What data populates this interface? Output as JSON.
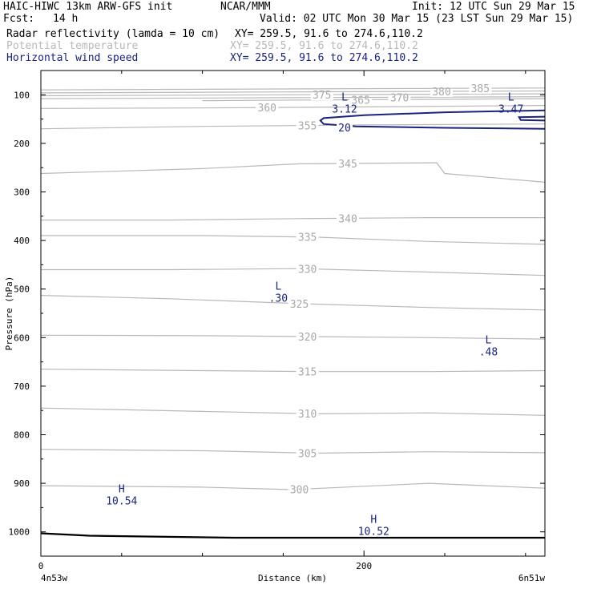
{
  "header": {
    "model": "HAIC-HIWC 13km ARW-GFS init",
    "org": "NCAR/MMM",
    "init": "Init: 12 UTC Sun 29 Mar 15",
    "fcst_label": "Fcst:",
    "fcst_value": "14 h",
    "valid": "Valid: 02 UTC Mon 30 Mar 15 (23 LST Sun 29 Mar 15)",
    "fields": [
      {
        "name": "Radar reflectivity (lamda = 10 cm)",
        "xy": "XY= 259.5, 91.6 to 274.6,110.2",
        "color": "#000000"
      },
      {
        "name": "Potential temperature",
        "xy": "XY= 259.5, 91.6 to 274.6,110.2",
        "color": "#b8b8b8"
      },
      {
        "name": "Horizontal wind speed",
        "xy": "XY= 259.5, 91.6 to 274.6,110.2",
        "color": "#1a237e"
      }
    ]
  },
  "chart_data": {
    "type": "line",
    "xlabel": "Distance (km)",
    "ylabel": "Pressure (hPa)",
    "xlim": [
      0,
      312
    ],
    "ylim": [
      1050,
      50
    ],
    "x_ticks": [
      "0",
      "200"
    ],
    "y_ticks": [
      "100",
      "200",
      "300",
      "400",
      "500",
      "600",
      "700",
      "800",
      "900",
      "1000"
    ],
    "x_endpoints": {
      "left": "4n53w",
      "right": "6n51w"
    },
    "grid": false,
    "series": [
      {
        "name": "Potential temperature",
        "color": "#b8b8b8",
        "isentropes": [
          {
            "label": "300",
            "x": [
              0,
              100,
              155,
              240,
              312
            ],
            "p": [
              905,
              908,
              913,
              900,
              910
            ]
          },
          {
            "label": "305",
            "x": [
              0,
              100,
              170,
              240,
              312
            ],
            "p": [
              830,
              833,
              838,
              835,
              837
            ]
          },
          {
            "label": "310",
            "x": [
              0,
              100,
              170,
              240,
              312
            ],
            "p": [
              745,
              752,
              757,
              755,
              760
            ]
          },
          {
            "label": "315",
            "x": [
              0,
              100,
              170,
              240,
              312
            ],
            "p": [
              665,
              668,
              670,
              670,
              668
            ]
          },
          {
            "label": "320",
            "x": [
              0,
              100,
              170,
              240,
              312
            ],
            "p": [
              595,
              596,
              598,
              600,
              603
            ]
          },
          {
            "label": "325",
            "x": [
              0,
              80,
              160,
              240,
              312
            ],
            "p": [
              513,
              520,
              530,
              538,
              543
            ]
          },
          {
            "label": "330",
            "x": [
              0,
              80,
              160,
              240,
              312
            ],
            "p": [
              460,
              460,
              458,
              465,
              472
            ]
          },
          {
            "label": "335",
            "x": [
              0,
              100,
              170,
              240,
              312
            ],
            "p": [
              390,
              390,
              393,
              402,
              408
            ]
          },
          {
            "label": "340",
            "x": [
              0,
              80,
              160,
              240,
              312
            ],
            "p": [
              358,
              358,
              355,
              353,
              353
            ]
          },
          {
            "label": "345",
            "x": [
              0,
              100,
              160,
              245,
              250,
              312
            ],
            "p": [
              262,
              252,
              242,
              240,
              262,
              280
            ]
          },
          {
            "label": "355",
            "x": [
              0,
              100,
              200,
              312
            ],
            "p": [
              170,
              165,
              162,
              160
            ]
          },
          {
            "label": "360",
            "x": [
              0,
              100,
              200,
              312
            ],
            "p": [
              128,
              127,
              125,
              122
            ]
          },
          {
            "label": "365",
            "x": [
              100,
              200,
              312
            ],
            "p": [
              112,
              110,
              108
            ]
          },
          {
            "label": "370",
            "x": [
              0,
              150,
              312
            ],
            "p": [
              108,
              106,
              104
            ]
          },
          {
            "label": "375",
            "x": [
              0,
              150,
              312
            ],
            "p": [
              102,
              100,
              98
            ]
          },
          {
            "label": "380",
            "x": [
              0,
              150,
              312
            ],
            "p": [
              96,
              94,
              92
            ]
          },
          {
            "label": "385",
            "x": [
              0,
              150,
              312
            ],
            "p": [
              90,
              88,
              86
            ]
          }
        ]
      },
      {
        "name": "Horizontal wind speed",
        "color": "#1a237e",
        "contour_label": "20",
        "extremes": [
          {
            "type": "L",
            "value": "3.12",
            "x": 188,
            "p": 115
          },
          {
            "type": "L",
            "value": "3.47",
            "x": 291,
            "p": 115
          },
          {
            "type": "L",
            "value": ".30",
            "x": 147,
            "p": 505
          },
          {
            "type": "L",
            "value": ".48",
            "x": 277,
            "p": 615
          },
          {
            "type": "H",
            "value": "10.54",
            "x": 50,
            "p": 922
          },
          {
            "type": "H",
            "value": "10.52",
            "x": 206,
            "p": 985
          }
        ]
      },
      {
        "name": "Radar reflectivity",
        "color": "#000000",
        "x": [
          0,
          30,
          120,
          200,
          312
        ],
        "p": [
          1003,
          1008,
          1012,
          1012,
          1012
        ]
      }
    ]
  }
}
